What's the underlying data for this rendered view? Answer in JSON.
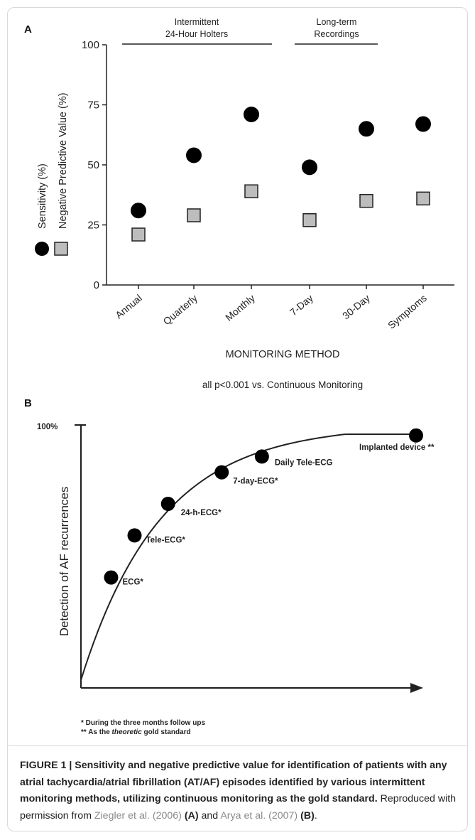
{
  "chart_data": [
    {
      "type": "scatter",
      "panel_label": "A",
      "group_headers": [
        {
          "label_line1": "Intermittent",
          "label_line2": "24-Hour Holters"
        },
        {
          "label_line1": "Long-term",
          "label_line2": "Recordings"
        }
      ],
      "categories": [
        "Annual",
        "Quarterly",
        "Monthly",
        "7-Day",
        "30-Day",
        "Symptoms"
      ],
      "series": [
        {
          "name": "Sensitivity (%)",
          "marker": "circle",
          "color": "#000000",
          "values": [
            31,
            54,
            71,
            49,
            65,
            67
          ]
        },
        {
          "name": "Negative Predictive Value (%)",
          "marker": "square",
          "color": "#bdbdbd",
          "values": [
            21,
            29,
            39,
            27,
            35,
            36
          ]
        }
      ],
      "ylim": [
        0,
        100
      ],
      "yticks": [
        "0",
        "25",
        "50",
        "75",
        "100"
      ],
      "xlabel": "MONITORING METHOD",
      "note": "all p<0.001 vs. Continuous Monitoring"
    },
    {
      "type": "line",
      "panel_label": "B",
      "ylabel": "Detection of AF recurrences",
      "y_top_label": "100%",
      "points": [
        {
          "label": "ECG*",
          "x": 0.09,
          "y": 0.42
        },
        {
          "label": "Tele-ECG*",
          "x": 0.16,
          "y": 0.58
        },
        {
          "label": "24-h-ECG*",
          "x": 0.26,
          "y": 0.7
        },
        {
          "label": "7-day-ECG*",
          "x": 0.42,
          "y": 0.82
        },
        {
          "label": "Daily Tele-ECG",
          "x": 0.54,
          "y": 0.88
        },
        {
          "label": "Implanted device **",
          "x": 1.0,
          "y": 0.96
        }
      ],
      "footnotes": [
        "* During the three months follow ups",
        "** As the theoretic gold standard"
      ]
    }
  ],
  "caption": {
    "bold": "FIGURE 1 | Sensitivity and negative predictive value for identification of patients with any atrial tachycardia/atrial fibrillation (AT/AF) episodes identified by various intermittent monitoring methods, utilizing continuous monitoring as the gold standard.",
    "text1": " Reproduced with permission from ",
    "ref1": "Ziegler et al. (2006)",
    "tagA": "(A)",
    "text2": " and ",
    "ref2": "Arya et al. (2007)",
    "tagB": "(B)",
    "end": "."
  }
}
